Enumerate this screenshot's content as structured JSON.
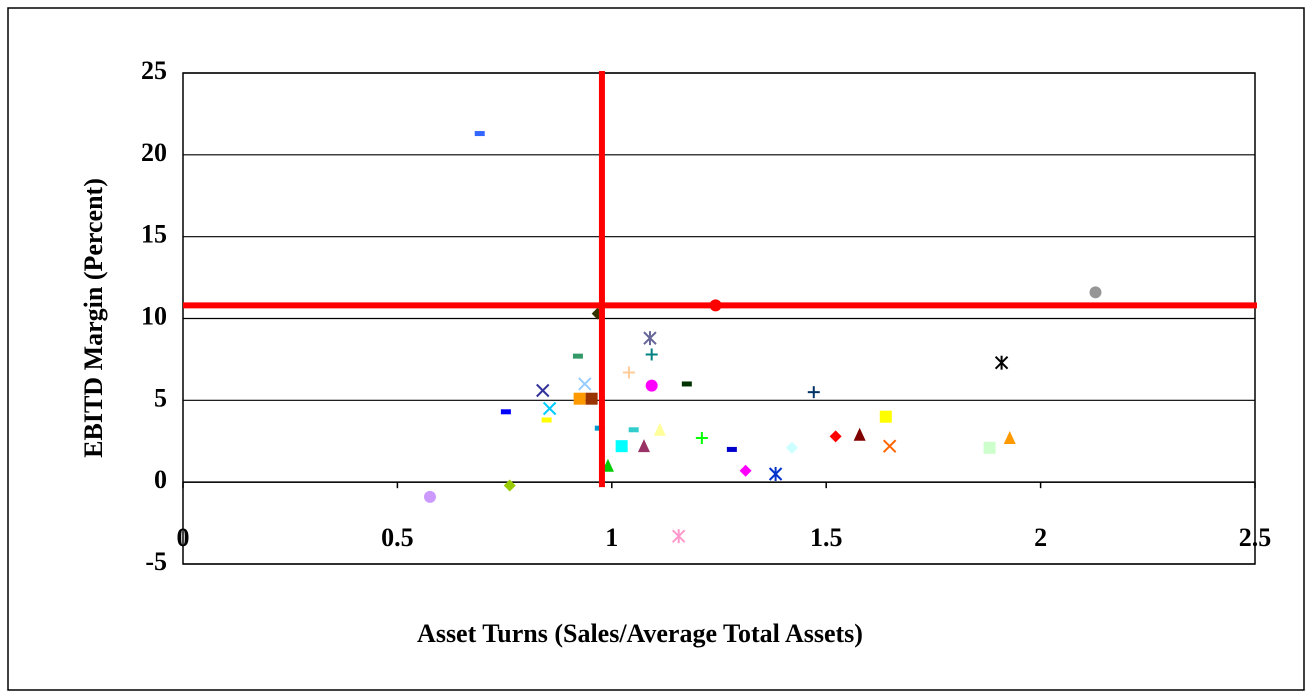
{
  "chart_data": {
    "type": "scatter",
    "x_label": "Asset Turns (Sales/Average Total Assets)",
    "y_label": "EBITD Margin (Percent)",
    "xlim": [
      0,
      2.5
    ],
    "ylim": [
      -5,
      25
    ],
    "xticks": [
      0,
      0.5,
      1,
      1.5,
      2,
      2.5
    ],
    "yticks": [
      -5,
      0,
      5,
      10,
      15,
      20,
      25
    ],
    "grid": true,
    "reference_lines": {
      "x": 0.977,
      "y": 10.8,
      "color": "#ff0000"
    },
    "series": [
      {
        "color": "#3366ff",
        "marker": "dash",
        "x": [
          0.692
        ],
        "values": [
          21.3
        ]
      },
      {
        "color": "#969696",
        "marker": "circle",
        "x": [
          2.128
        ],
        "values": [
          11.6
        ]
      },
      {
        "color": "#ff0000",
        "marker": "circle",
        "x": [
          1.242
        ],
        "values": [
          10.8
        ]
      },
      {
        "color": "#333300",
        "marker": "diamond",
        "x": [
          0.967
        ],
        "values": [
          10.3
        ]
      },
      {
        "color": "#666699",
        "marker": "star",
        "x": [
          1.089
        ],
        "values": [
          8.8
        ]
      },
      {
        "color": "#008080",
        "marker": "plus",
        "x": [
          1.093
        ],
        "values": [
          7.8
        ]
      },
      {
        "color": "#339966",
        "marker": "dash",
        "x": [
          0.921
        ],
        "values": [
          7.7
        ]
      },
      {
        "color": "#000000",
        "marker": "star",
        "x": [
          1.909
        ],
        "values": [
          7.3
        ]
      },
      {
        "color": "#ffcc99",
        "marker": "plus",
        "x": [
          1.04
        ],
        "values": [
          6.7
        ]
      },
      {
        "color": "#003300",
        "marker": "dash",
        "x": [
          1.175
        ],
        "values": [
          6.0
        ]
      },
      {
        "color": "#99ccff",
        "marker": "x",
        "x": [
          0.937
        ],
        "values": [
          6.0
        ]
      },
      {
        "color": "#ff00ff",
        "marker": "circle",
        "x": [
          1.093
        ],
        "values": [
          5.9
        ]
      },
      {
        "color": "#333399",
        "marker": "x",
        "x": [
          0.839
        ],
        "values": [
          5.6
        ]
      },
      {
        "color": "#003366",
        "marker": "plus",
        "x": [
          1.471
        ],
        "values": [
          5.5
        ]
      },
      {
        "color": "#ff9900",
        "marker": "square",
        "x": [
          0.925
        ],
        "values": [
          5.1
        ]
      },
      {
        "color": "#993300",
        "marker": "square",
        "x": [
          0.953
        ],
        "values": [
          5.1
        ]
      },
      {
        "color": "#00ccff",
        "marker": "x",
        "x": [
          0.855
        ],
        "values": [
          4.5
        ]
      },
      {
        "color": "#0000ff",
        "marker": "dash",
        "x": [
          0.753
        ],
        "values": [
          4.3
        ]
      },
      {
        "color": "#ffff00",
        "marker": "square",
        "x": [
          1.639
        ],
        "values": [
          4.0
        ]
      },
      {
        "color": "#ffff00",
        "marker": "dash",
        "x": [
          0.848
        ],
        "values": [
          3.8
        ]
      },
      {
        "color": "#0099cc",
        "marker": "dash",
        "x": [
          0.972
        ],
        "values": [
          3.3
        ]
      },
      {
        "color": "#33cccc",
        "marker": "dash",
        "x": [
          1.051
        ],
        "values": [
          3.2
        ]
      },
      {
        "color": "#ffff99",
        "marker": "triangle",
        "x": [
          1.112
        ],
        "values": [
          3.2
        ]
      },
      {
        "color": "#ff0000",
        "marker": "diamond",
        "x": [
          1.522
        ],
        "values": [
          2.8
        ]
      },
      {
        "color": "#800000",
        "marker": "triangle",
        "x": [
          1.578
        ],
        "values": [
          2.9
        ]
      },
      {
        "color": "#00ff00",
        "marker": "plus",
        "x": [
          1.21
        ],
        "values": [
          2.7
        ]
      },
      {
        "color": "#ff9900",
        "marker": "triangle",
        "x": [
          1.928
        ],
        "values": [
          2.7
        ]
      },
      {
        "color": "#00ffff",
        "marker": "square",
        "x": [
          1.023
        ],
        "values": [
          2.2
        ]
      },
      {
        "color": "#993366",
        "marker": "triangle",
        "x": [
          1.075
        ],
        "values": [
          2.2
        ]
      },
      {
        "color": "#ff6600",
        "marker": "x",
        "x": [
          1.648
        ],
        "values": [
          2.2
        ]
      },
      {
        "color": "#ccffff",
        "marker": "diamond",
        "x": [
          1.42
        ],
        "values": [
          2.1
        ]
      },
      {
        "color": "#ccffcc",
        "marker": "square",
        "x": [
          1.881
        ],
        "values": [
          2.1
        ]
      },
      {
        "color": "#0000cc",
        "marker": "dash",
        "x": [
          1.28
        ],
        "values": [
          2.0
        ]
      },
      {
        "color": "#00cc00",
        "marker": "triangle",
        "x": [
          0.991
        ],
        "values": [
          1.0
        ]
      },
      {
        "color": "#ff00ff",
        "marker": "diamond",
        "x": [
          1.312
        ],
        "values": [
          0.7
        ]
      },
      {
        "color": "#0033cc",
        "marker": "star",
        "x": [
          1.382
        ],
        "values": [
          0.5
        ]
      },
      {
        "color": "#99cc00",
        "marker": "diamond",
        "x": [
          0.762
        ],
        "values": [
          -0.2
        ]
      },
      {
        "color": "#cc99ff",
        "marker": "circle",
        "x": [
          0.576
        ],
        "values": [
          -0.9
        ]
      },
      {
        "color": "#ff99cc",
        "marker": "star",
        "x": [
          1.156
        ],
        "values": [
          -3.3
        ]
      }
    ]
  }
}
